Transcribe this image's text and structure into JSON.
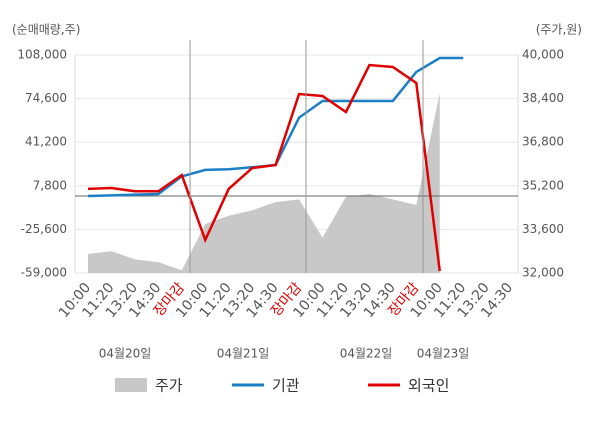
{
  "chart_data": {
    "type": "line",
    "y_label": "(순매매량,주)",
    "y2_label": "(주가,원)",
    "categories": [
      "10:00",
      "11:20",
      "13:20",
      "14:30",
      "장마감",
      "10:00",
      "11:20",
      "13:20",
      "14:30",
      "장마감",
      "10:00",
      "11:20",
      "13:20",
      "14:30",
      "장마감",
      "10:00",
      "11:20",
      "13:20",
      "14:30"
    ],
    "category_colors": [
      "#555",
      "#555",
      "#555",
      "#555",
      "#e00000",
      "#555",
      "#555",
      "#555",
      "#555",
      "#e00000",
      "#555",
      "#555",
      "#555",
      "#555",
      "#e00000",
      "#555",
      "#555",
      "#555",
      "#555"
    ],
    "dates": [
      "04월20일",
      "04월21일",
      "04월22일",
      "04월23일"
    ],
    "series": [
      {
        "name": "주가",
        "type": "area",
        "axis": "y2",
        "color": "#c8c8c8",
        "values": [
          32700,
          32800,
          32500,
          32400,
          32100,
          33800,
          34100,
          34300,
          34600,
          34700,
          33300,
          34800,
          34900,
          34700,
          34500,
          38600,
          null,
          null,
          null
        ]
      },
      {
        "name": "기관",
        "type": "line",
        "color": "#1b7fc6",
        "values": [
          0,
          500,
          1000,
          1500,
          15000,
          20000,
          20500,
          22000,
          23700,
          60000,
          72800,
          72800,
          72800,
          72800,
          95000,
          105700,
          105700,
          null,
          null
        ]
      },
      {
        "name": "외국인",
        "type": "line",
        "color": "#e00000",
        "values": [
          5400,
          6100,
          3600,
          3600,
          16000,
          -33700,
          5400,
          21400,
          23700,
          78100,
          76600,
          64300,
          100300,
          98800,
          86600,
          -57500,
          null,
          null,
          null
        ]
      }
    ],
    "ylim": [
      -59000,
      108000
    ],
    "yticks": [
      {
        "value": -59000,
        "label": "-59,000"
      },
      {
        "value": -25600,
        "label": "-25,600"
      },
      {
        "value": 7800,
        "label": "7,800"
      },
      {
        "value": 41200,
        "label": "41,200"
      },
      {
        "value": 74600,
        "label": "74,600"
      },
      {
        "value": 108000,
        "label": "108,000"
      }
    ],
    "y2lim": [
      32000,
      40000
    ],
    "y2ticks": [
      {
        "value": 32000,
        "label": "32,000"
      },
      {
        "value": 33600,
        "label": "33,600"
      },
      {
        "value": 35200,
        "label": "35,200"
      },
      {
        "value": 36800,
        "label": "36,800"
      },
      {
        "value": 38400,
        "label": "38,400"
      },
      {
        "value": 40000,
        "label": "40,000"
      }
    ],
    "grid": true
  }
}
